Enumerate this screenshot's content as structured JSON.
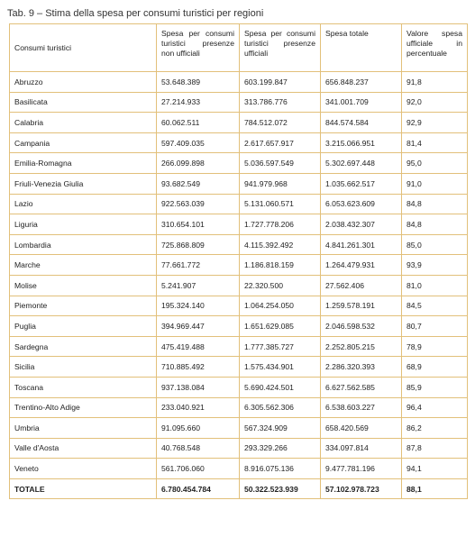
{
  "caption": "Tab. 9 – Stima della spesa per consumi turistici per regioni",
  "headers": [
    "Consumi turistici",
    "Spesa per consumi turistici presenze non ufficiali",
    "Spesa per consumi turistici presenze ufficiali",
    "Spesa totale",
    "Valore spesa ufficiale in percentuale"
  ],
  "rows": [
    [
      "Abruzzo",
      "53.648.389",
      "603.199.847",
      "656.848.237",
      "91,8"
    ],
    [
      "Basilicata",
      "27.214.933",
      "313.786.776",
      "341.001.709",
      "92,0"
    ],
    [
      "Calabria",
      "60.062.511",
      "784.512.072",
      "844.574.584",
      "92,9"
    ],
    [
      "Campania",
      "597.409.035",
      "2.617.657.917",
      "3.215.066.951",
      "81,4"
    ],
    [
      "Emilia-Romagna",
      "266.099.898",
      "5.036.597.549",
      "5.302.697.448",
      "95,0"
    ],
    [
      "Friuli-Venezia Giulia",
      "93.682.549",
      "941.979.968",
      "1.035.662.517",
      "91,0"
    ],
    [
      "Lazio",
      "922.563.039",
      "5.131.060.571",
      "6.053.623.609",
      "84,8"
    ],
    [
      "Liguria",
      "310.654.101",
      "1.727.778.206",
      "2.038.432.307",
      "84,8"
    ],
    [
      "Lombardia",
      "725.868.809",
      "4.115.392.492",
      "4.841.261.301",
      "85,0"
    ],
    [
      "Marche",
      "77.661.772",
      "1.186.818.159",
      "1.264.479.931",
      "93,9"
    ],
    [
      "Molise",
      "5.241.907",
      "22.320.500",
      "27.562.406",
      "81,0"
    ],
    [
      "Piemonte",
      "195.324.140",
      "1.064.254.050",
      "1.259.578.191",
      "84,5"
    ],
    [
      "Puglia",
      "394.969.447",
      "1.651.629.085",
      "2.046.598.532",
      "80,7"
    ],
    [
      "Sardegna",
      "475.419.488",
      "1.777.385.727",
      "2.252.805.215",
      "78,9"
    ],
    [
      "Sicilia",
      "710.885.492",
      "1.575.434.901",
      "2.286.320.393",
      "68,9"
    ],
    [
      "Toscana",
      "937.138.084",
      "5.690.424.501",
      "6.627.562.585",
      "85,9"
    ],
    [
      "Trentino-Alto Adige",
      "233.040.921",
      "6.305.562.306",
      "6.538.603.227",
      "96,4"
    ],
    [
      "Umbria",
      "91.095.660",
      "567.324.909",
      "658.420.569",
      "86,2"
    ],
    [
      "Valle d'Aosta",
      "40.768.548",
      "293.329.266",
      "334.097.814",
      "87,8"
    ],
    [
      "Veneto",
      "561.706.060",
      "8.916.075.136",
      "9.477.781.196",
      "94,1"
    ]
  ],
  "total": [
    "TOTALE",
    "6.780.454.784",
    "50.322.523.939",
    "57.102.978.723",
    "88,1"
  ]
}
